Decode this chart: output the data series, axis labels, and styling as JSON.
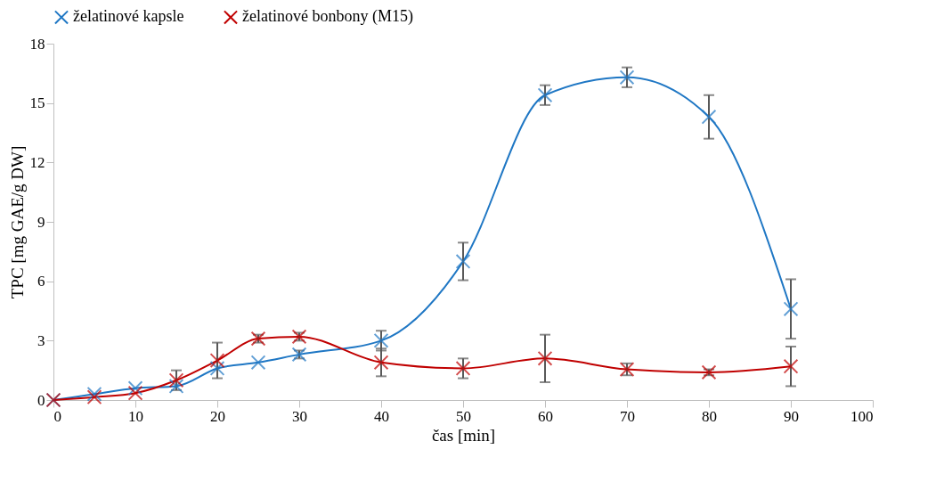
{
  "chart_data": {
    "type": "line",
    "xlabel": "čas [min]",
    "ylabel": "TPC [mg GAE/g DW]",
    "x": [
      0,
      5,
      10,
      15,
      20,
      25,
      30,
      40,
      50,
      60,
      70,
      80,
      90
    ],
    "series": [
      {
        "name": "želatinové kapsle",
        "color": "#1f77c4",
        "values": [
          0,
          0.3,
          0.6,
          0.7,
          1.6,
          1.9,
          2.3,
          3.0,
          7.0,
          15.4,
          16.3,
          14.3,
          4.6
        ],
        "errors": [
          null,
          null,
          null,
          null,
          null,
          null,
          0.2,
          0.5,
          0.95,
          0.5,
          0.5,
          1.1,
          1.5
        ]
      },
      {
        "name": "želatinové bonbony (M15)",
        "color": "#c00000",
        "values": [
          0,
          0.15,
          0.35,
          1.0,
          2.0,
          3.1,
          3.2,
          1.9,
          1.6,
          2.1,
          1.55,
          1.4,
          1.7
        ],
        "errors": [
          null,
          null,
          null,
          0.5,
          0.9,
          0.2,
          0.2,
          0.7,
          0.5,
          1.2,
          0.3,
          0.15,
          1.0
        ]
      }
    ],
    "xlim": [
      0,
      100
    ],
    "xticks": [
      0,
      10,
      20,
      30,
      40,
      50,
      60,
      70,
      80,
      90,
      100
    ],
    "ylim": [
      0,
      18
    ],
    "yticks": [
      0,
      3,
      6,
      9,
      12,
      15,
      18
    ],
    "grid": false,
    "legend": "top",
    "marker": "cross",
    "line_style": "solid"
  }
}
